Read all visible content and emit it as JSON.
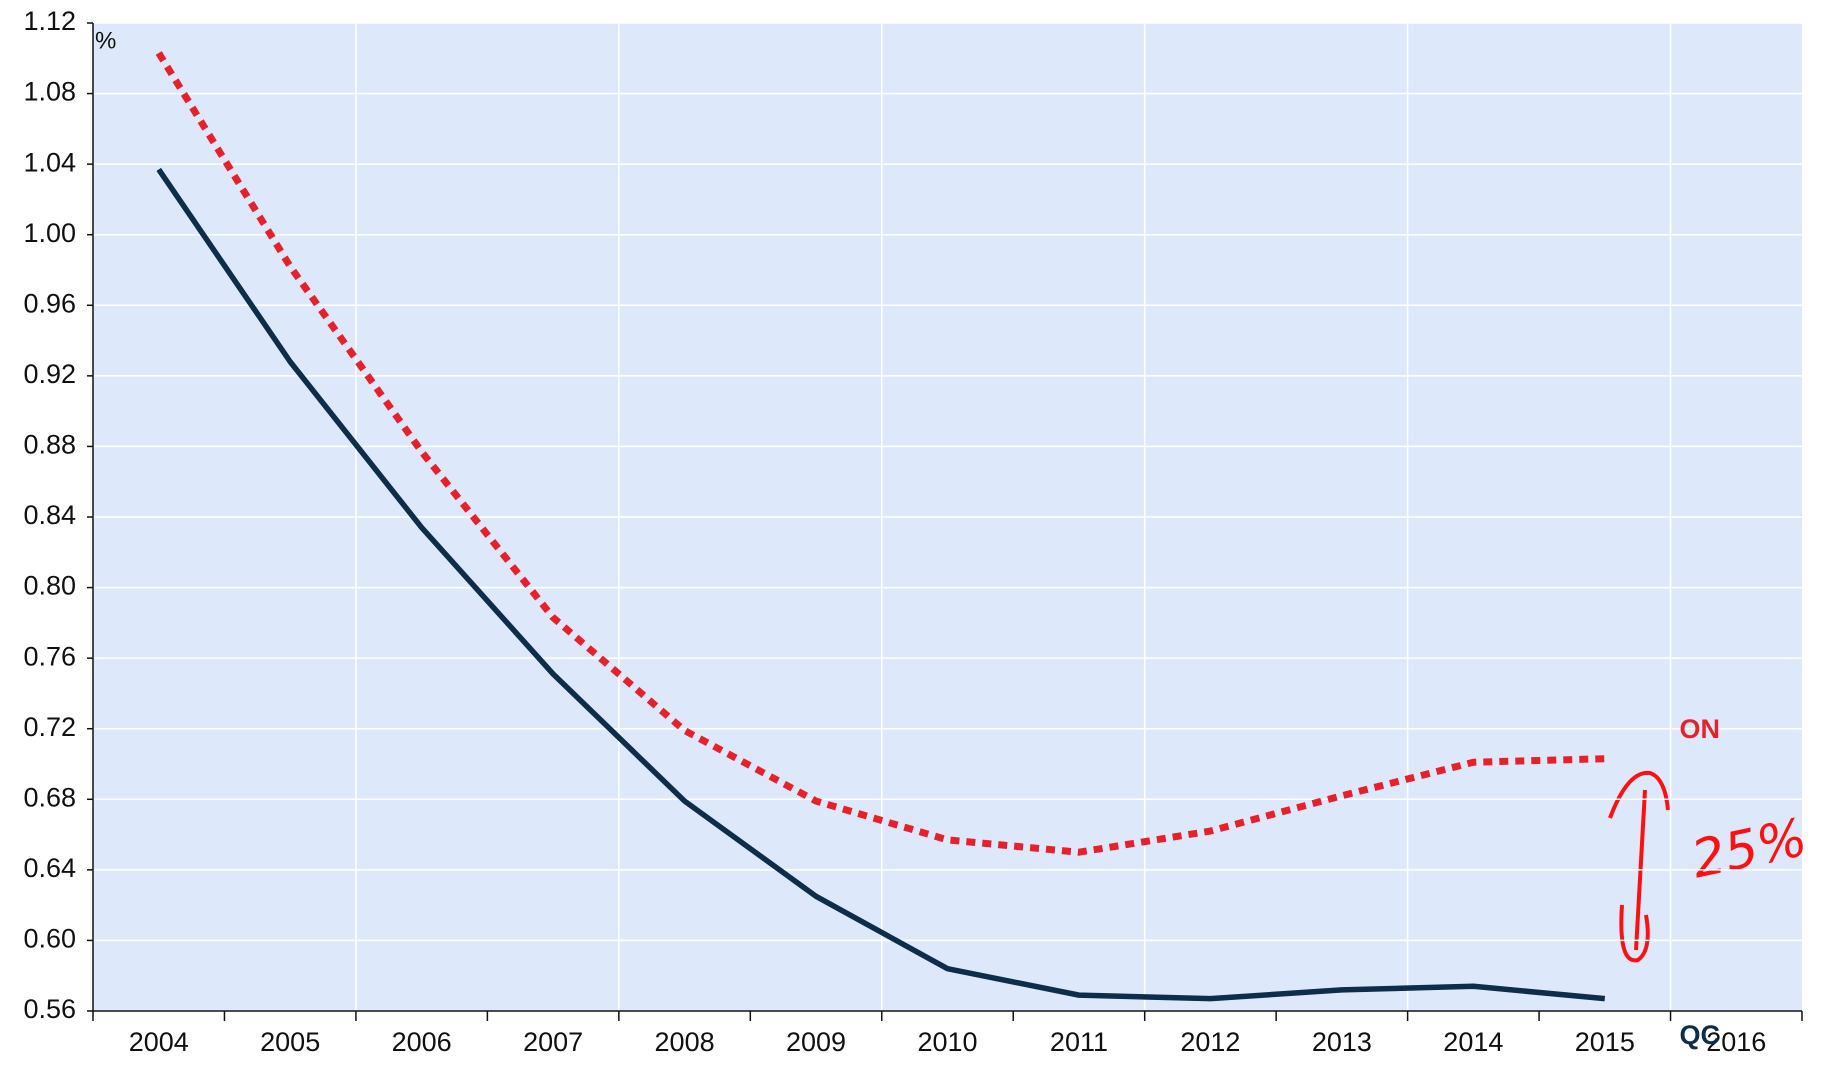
{
  "chart_data": {
    "type": "line",
    "unit_label": "%",
    "categories": [
      "2004",
      "2005",
      "2006",
      "2007",
      "2008",
      "2009",
      "2010",
      "2011",
      "2012",
      "2013",
      "2014",
      "2015",
      "2016"
    ],
    "series": [
      {
        "name": "ON",
        "color": "#e8202a",
        "dashed": true,
        "values": [
          1.103,
          0.982,
          0.877,
          0.783,
          0.719,
          0.679,
          0.657,
          0.65,
          0.662,
          0.682,
          0.701,
          0.703,
          null
        ]
      },
      {
        "name": "QC",
        "color": "#0d2d4a",
        "dashed": false,
        "values": [
          1.037,
          0.928,
          0.834,
          0.751,
          0.679,
          0.625,
          0.584,
          0.569,
          0.567,
          0.572,
          0.574,
          0.567,
          null
        ]
      }
    ],
    "annotation": "25%",
    "ylim": [
      0.56,
      1.12
    ],
    "yticks": [
      {
        "value": 0.56,
        "label": "0.56"
      },
      {
        "value": 0.6,
        "label": "0.60"
      },
      {
        "value": 0.64,
        "label": "0.64"
      },
      {
        "value": 0.68,
        "label": "0.68"
      },
      {
        "value": 0.72,
        "label": "0.72"
      },
      {
        "value": 0.76,
        "label": "0.76"
      },
      {
        "value": 0.8,
        "label": "0.80"
      },
      {
        "value": 0.84,
        "label": "0.84"
      },
      {
        "value": 0.88,
        "label": "0.88"
      },
      {
        "value": 0.92,
        "label": "0.92"
      },
      {
        "value": 0.96,
        "label": "0.96"
      },
      {
        "value": 1.0,
        "label": "1.00"
      },
      {
        "value": 1.04,
        "label": "1.04"
      },
      {
        "value": 1.08,
        "label": "1.08"
      },
      {
        "value": 1.12,
        "label": "1.12"
      }
    ],
    "grid": true,
    "background": "#dde9fb"
  }
}
